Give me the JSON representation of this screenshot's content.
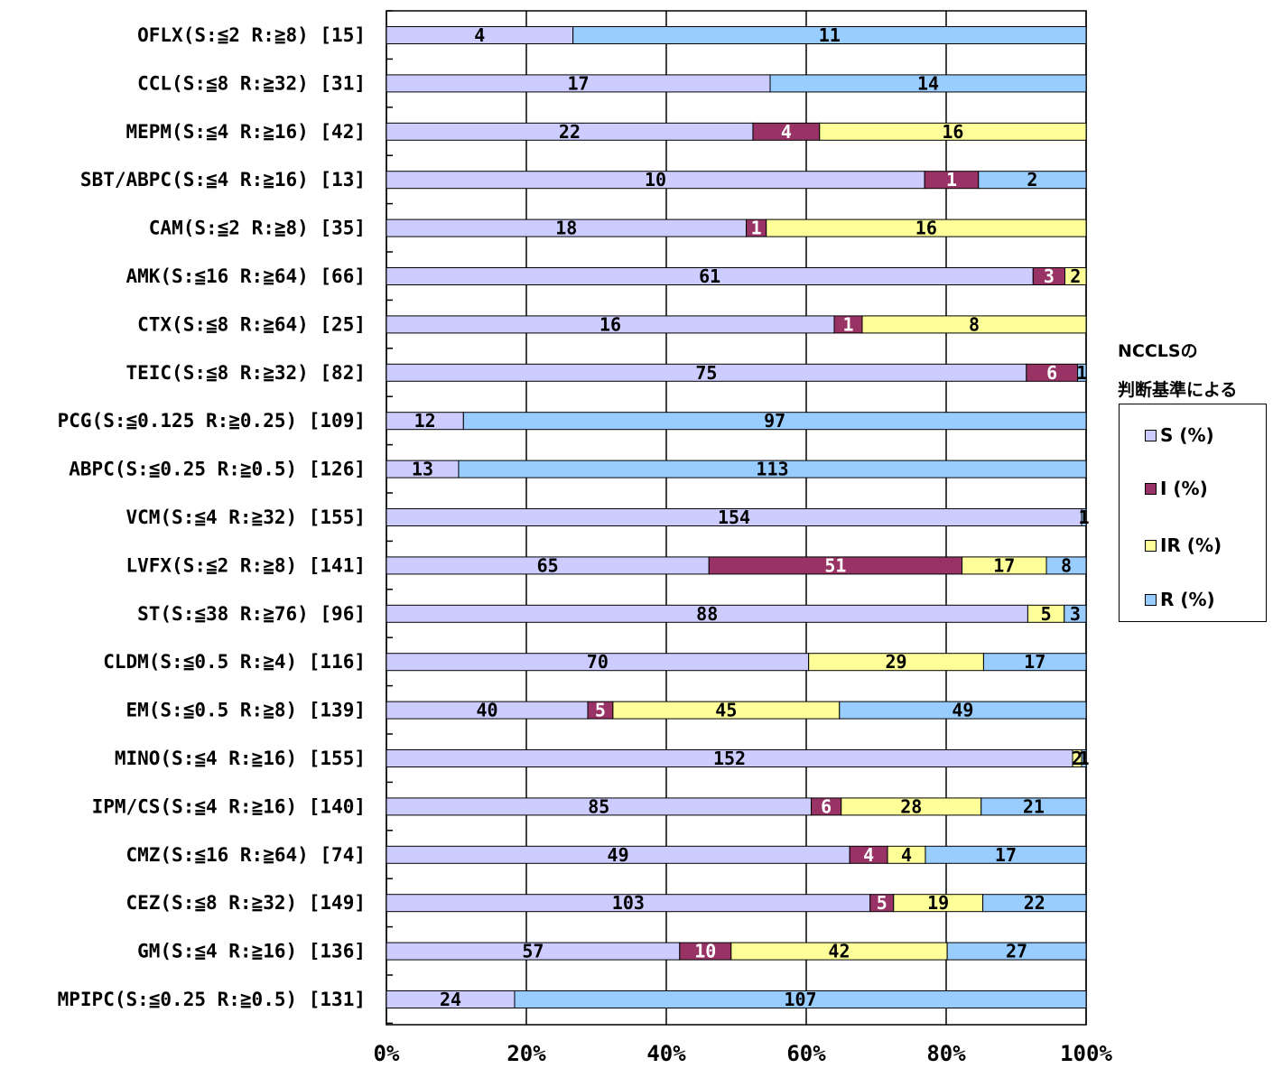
{
  "chart_data": {
    "type": "bar",
    "orientation": "horizontal",
    "stacking": "percent",
    "categories": [
      "OFLX(S:≦2 R:≧8) [15]",
      "CCL(S:≦8 R:≧32) [31]",
      "MEPM(S:≦4 R:≧16) [42]",
      "SBT/ABPC(S:≦4 R:≧16) [13]",
      "CAM(S:≦2 R:≧8) [35]",
      "AMK(S:≦16 R:≧64) [66]",
      "CTX(S:≦8 R:≧64) [25]",
      "TEIC(S:≦8 R:≧32) [82]",
      "PCG(S:≦0.125 R:≧0.25) [109]",
      "ABPC(S:≦0.25 R:≧0.5) [126]",
      "VCM(S:≦4 R:≧32) [155]",
      "LVFX(S:≦2 R:≧8) [141]",
      "ST(S:≦38 R:≧76) [96]",
      "CLDM(S:≦0.5 R:≧4) [116]",
      "EM(S:≦0.5 R:≧8) [139]",
      "MINO(S:≦4 R:≧16) [155]",
      "IPM/CS(S:≦4 R:≧16) [140]",
      "CMZ(S:≦16 R:≧64) [74]",
      "CEZ(S:≦8 R:≧32) [149]",
      "GM(S:≦4 R:≧16) [136]",
      "MPIPC(S:≦0.25 R:≧0.5) [131]"
    ],
    "series": [
      {
        "name": "S (%)",
        "color": "#ccccff",
        "values": [
          4,
          17,
          22,
          10,
          18,
          61,
          16,
          75,
          12,
          13,
          154,
          65,
          88,
          70,
          40,
          152,
          85,
          49,
          103,
          57,
          24
        ]
      },
      {
        "name": "I (%)",
        "color": "#993366",
        "values": [
          0,
          0,
          4,
          1,
          1,
          3,
          1,
          6,
          0,
          0,
          0,
          51,
          0,
          0,
          5,
          0,
          6,
          4,
          5,
          10,
          0
        ]
      },
      {
        "name": "IR (%)",
        "color": "#ffff99",
        "values": [
          0,
          0,
          16,
          0,
          16,
          2,
          8,
          0,
          0,
          0,
          0,
          17,
          5,
          29,
          45,
          2,
          28,
          4,
          19,
          42,
          0
        ]
      },
      {
        "name": "R (%)",
        "color": "#99ccff",
        "values": [
          11,
          14,
          0,
          2,
          0,
          0,
          0,
          1,
          97,
          113,
          1,
          8,
          3,
          17,
          49,
          1,
          21,
          17,
          22,
          27,
          107
        ]
      }
    ],
    "x_ticks": [
      "0%",
      "20%",
      "40%",
      "60%",
      "80%",
      "100%"
    ],
    "xlim": [
      0,
      100
    ],
    "grid": true,
    "legend_position": "right",
    "side_note": [
      "NCCLSの",
      "判断基準による"
    ]
  }
}
